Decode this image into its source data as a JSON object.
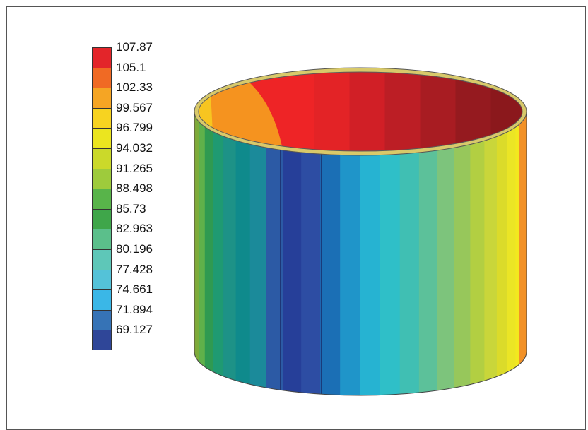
{
  "legend": {
    "labels": [
      "107.87",
      "105.1",
      "102.33",
      "99.567",
      "96.799",
      "94.032",
      "91.265",
      "88.498",
      "85.73",
      "82.963",
      "80.196",
      "77.428",
      "74.661",
      "71.894",
      "69.127"
    ],
    "colors": [
      "#e3252a",
      "#f06a24",
      "#f5a524",
      "#f7d320",
      "#ebe51f",
      "#cbd92a",
      "#9ecb3c",
      "#58b44a",
      "#3fa64a",
      "#5bbf8b",
      "#5ec7b8",
      "#54c2d8",
      "#3ab7e7",
      "#3673b6",
      "#2f4698"
    ]
  },
  "cylinder": {
    "top_colors": [
      "#ee2426",
      "#e32326",
      "#d11f26",
      "#bc1e25",
      "#a81c22",
      "#951a1f",
      "#8b181c"
    ],
    "inner_patch_color": "#f5931f",
    "inner_patch_edge_color": "#f7c520",
    "wall_colors": [
      "#8c9e3a",
      "#7dab3a",
      "#5fb14a",
      "#2f9a51",
      "#1f9a72",
      "#1d9287",
      "#0f8a8c",
      "#1b8a9a",
      "#2c5aa5",
      "#263f99",
      "#2d4da3",
      "#1b6fb5",
      "#1f95c9",
      "#26b3d2",
      "#2fbfc8",
      "#40bfb3",
      "#5cc19a",
      "#7dc47c",
      "#97c75b",
      "#b2cf42",
      "#c9d63a",
      "#dbdb2a",
      "#ebe525",
      "#f2e81f",
      "#f7e41c",
      "#f7cf21"
    ],
    "right_edge_color": "#f29127"
  }
}
